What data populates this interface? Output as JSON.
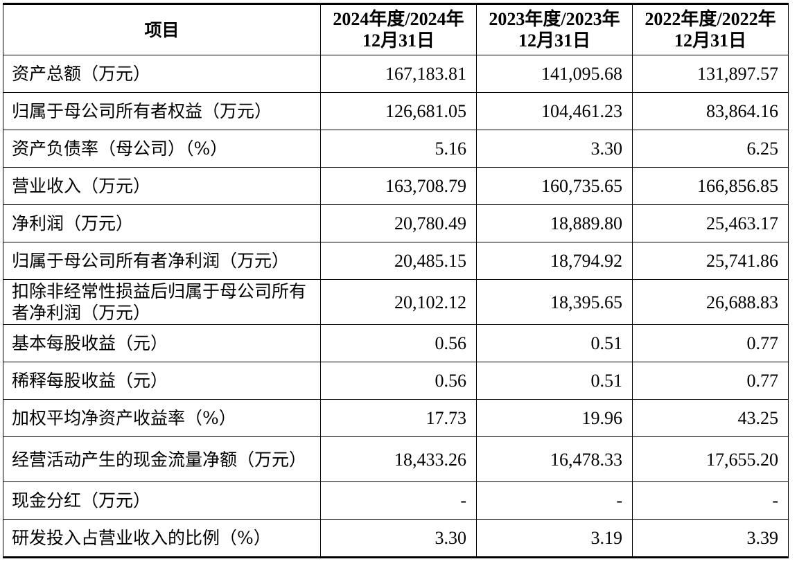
{
  "table": {
    "header_label": "项目",
    "columns": [
      "2024年度/2024年12月31日",
      "2023年度/2023年12月31日",
      "2022年度/2022年12月31日"
    ],
    "rows": [
      {
        "label": "资产总额（万元）",
        "values": [
          "167,183.81",
          "141,095.68",
          "131,897.57"
        ]
      },
      {
        "label": "归属于母公司所有者权益（万元）",
        "values": [
          "126,681.05",
          "104,461.23",
          "83,864.16"
        ]
      },
      {
        "label": "资产负债率（母公司）（%）",
        "values": [
          "5.16",
          "3.30",
          "6.25"
        ]
      },
      {
        "label": "营业收入（万元）",
        "values": [
          "163,708.79",
          "160,735.65",
          "166,856.85"
        ]
      },
      {
        "label": "净利润（万元）",
        "values": [
          "20,780.49",
          "18,889.80",
          "25,463.17"
        ]
      },
      {
        "label": "归属于母公司所有者净利润（万元）",
        "values": [
          "20,485.15",
          "18,794.92",
          "25,741.86"
        ]
      },
      {
        "label": "扣除非经常性损益后归属于母公司所有者净利润（万元）",
        "values": [
          "20,102.12",
          "18,395.65",
          "26,688.83"
        ]
      },
      {
        "label": "基本每股收益（元）",
        "values": [
          "0.56",
          "0.51",
          "0.77"
        ]
      },
      {
        "label": "稀释每股收益（元）",
        "values": [
          "0.56",
          "0.51",
          "0.77"
        ]
      },
      {
        "label": "加权平均净资产收益率（%）",
        "values": [
          "17.73",
          "19.96",
          "43.25"
        ]
      },
      {
        "label": "经营活动产生的现金流量净额（万元）",
        "values": [
          "18,433.26",
          "16,478.33",
          "17,655.20"
        ]
      },
      {
        "label": "现金分红（万元）",
        "values": [
          "-",
          "-",
          "-"
        ]
      },
      {
        "label": "研发投入占营业收入的比例（%）",
        "values": [
          "3.30",
          "3.19",
          "3.39"
        ]
      }
    ]
  }
}
